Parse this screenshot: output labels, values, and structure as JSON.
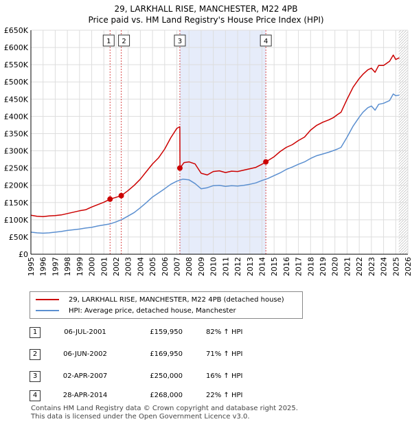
{
  "title": "29, LARKHALL RISE, MANCHESTER, M22 4PB",
  "subtitle": "Price paid vs. HM Land Registry's House Price Index (HPI)",
  "colors": {
    "red": "#cc0000",
    "blue": "#5b8fd0",
    "shade": "#e6ecfa",
    "grid": "#dddddd"
  },
  "chart_data": {
    "type": "line",
    "ylim": [
      0,
      650000
    ],
    "xlim": [
      1995,
      2026
    ],
    "y_ticks": [
      0,
      50000,
      100000,
      150000,
      200000,
      250000,
      300000,
      350000,
      400000,
      450000,
      500000,
      550000,
      600000,
      650000
    ],
    "y_tick_labels": [
      "£0",
      "£50K",
      "£100K",
      "£150K",
      "£200K",
      "£250K",
      "£300K",
      "£350K",
      "£400K",
      "£450K",
      "£500K",
      "£550K",
      "£600K",
      "£650K"
    ],
    "x_ticks": [
      1995,
      1996,
      1997,
      1998,
      1999,
      2000,
      2001,
      2002,
      2003,
      2004,
      2005,
      2006,
      2007,
      2008,
      2009,
      2010,
      2011,
      2012,
      2013,
      2014,
      2015,
      2016,
      2017,
      2018,
      2019,
      2020,
      2021,
      2022,
      2023,
      2024,
      2025,
      2026
    ],
    "x_tick_labels": [
      "1995",
      "1996",
      "1997",
      "1998",
      "1999",
      "2000",
      "2001",
      "2002",
      "2003",
      "2004",
      "2005",
      "2006",
      "2007",
      "2008",
      "2009",
      "2010",
      "2011",
      "2012",
      "2013",
      "2014",
      "2015",
      "2016",
      "2017",
      "2018",
      "2019",
      "2020",
      "2021",
      "2022",
      "2023",
      "2024",
      "2025",
      "2026"
    ],
    "series": [
      {
        "name": "29, LARKHALL RISE, MANCHESTER, M22 4PB (detached house)",
        "color": "#cc0000",
        "points": [
          [
            1995.0,
            113000
          ],
          [
            1995.5,
            110000
          ],
          [
            1996.0,
            109000
          ],
          [
            1996.5,
            111000
          ],
          [
            1997.0,
            112000
          ],
          [
            1997.5,
            114000
          ],
          [
            1998.0,
            118000
          ],
          [
            1998.5,
            122000
          ],
          [
            1999.0,
            126000
          ],
          [
            1999.5,
            129000
          ],
          [
            2000.0,
            137000
          ],
          [
            2000.5,
            144000
          ],
          [
            2001.0,
            151000
          ],
          [
            2001.51,
            159950
          ],
          [
            2002.0,
            165000
          ],
          [
            2002.43,
            169950
          ],
          [
            2003.0,
            185000
          ],
          [
            2003.5,
            200000
          ],
          [
            2004.0,
            218000
          ],
          [
            2004.5,
            240000
          ],
          [
            2005.0,
            262000
          ],
          [
            2005.5,
            280000
          ],
          [
            2006.0,
            305000
          ],
          [
            2006.5,
            338000
          ],
          [
            2007.0,
            365000
          ],
          [
            2007.25,
            370000
          ],
          [
            2007.26,
            250000
          ],
          [
            2007.6,
            266000
          ],
          [
            2008.0,
            268000
          ],
          [
            2008.5,
            262000
          ],
          [
            2009.0,
            235000
          ],
          [
            2009.5,
            230000
          ],
          [
            2010.0,
            240000
          ],
          [
            2010.5,
            242000
          ],
          [
            2011.0,
            237000
          ],
          [
            2011.5,
            241000
          ],
          [
            2012.0,
            240000
          ],
          [
            2012.5,
            244000
          ],
          [
            2013.0,
            248000
          ],
          [
            2013.5,
            252000
          ],
          [
            2014.0,
            261000
          ],
          [
            2014.32,
            268000
          ],
          [
            2015.0,
            283000
          ],
          [
            2015.5,
            298000
          ],
          [
            2016.0,
            310000
          ],
          [
            2016.5,
            318000
          ],
          [
            2017.0,
            330000
          ],
          [
            2017.5,
            340000
          ],
          [
            2018.0,
            360000
          ],
          [
            2018.5,
            374000
          ],
          [
            2019.0,
            383000
          ],
          [
            2019.5,
            390000
          ],
          [
            2019.9,
            397000
          ],
          [
            2020.2,
            405000
          ],
          [
            2020.5,
            412000
          ],
          [
            2021.0,
            450000
          ],
          [
            2021.5,
            485000
          ],
          [
            2022.0,
            510000
          ],
          [
            2022.3,
            522000
          ],
          [
            2022.7,
            535000
          ],
          [
            2023.0,
            540000
          ],
          [
            2023.3,
            528000
          ],
          [
            2023.6,
            548000
          ],
          [
            2024.0,
            548000
          ],
          [
            2024.5,
            560000
          ],
          [
            2024.8,
            578000
          ],
          [
            2025.0,
            565000
          ],
          [
            2025.3,
            570000
          ]
        ]
      },
      {
        "name": "HPI: Average price, detached house, Manchester",
        "color": "#5b8fd0",
        "points": [
          [
            1995.0,
            64000
          ],
          [
            1995.5,
            62000
          ],
          [
            1996.0,
            61000
          ],
          [
            1996.5,
            62000
          ],
          [
            1997.0,
            64000
          ],
          [
            1997.5,
            66000
          ],
          [
            1998.0,
            69000
          ],
          [
            1998.5,
            71000
          ],
          [
            1999.0,
            73000
          ],
          [
            1999.5,
            76000
          ],
          [
            2000.0,
            78000
          ],
          [
            2000.5,
            82000
          ],
          [
            2001.0,
            85000
          ],
          [
            2001.5,
            88000
          ],
          [
            2002.0,
            94000
          ],
          [
            2002.5,
            101000
          ],
          [
            2003.0,
            111000
          ],
          [
            2003.5,
            121000
          ],
          [
            2004.0,
            135000
          ],
          [
            2004.5,
            150000
          ],
          [
            2005.0,
            166000
          ],
          [
            2005.5,
            178000
          ],
          [
            2006.0,
            190000
          ],
          [
            2006.5,
            203000
          ],
          [
            2007.0,
            212000
          ],
          [
            2007.5,
            218000
          ],
          [
            2008.0,
            216000
          ],
          [
            2008.5,
            205000
          ],
          [
            2009.0,
            190000
          ],
          [
            2009.5,
            193000
          ],
          [
            2010.0,
            199000
          ],
          [
            2010.5,
            200000
          ],
          [
            2011.0,
            197000
          ],
          [
            2011.5,
            199000
          ],
          [
            2012.0,
            198000
          ],
          [
            2012.5,
            200000
          ],
          [
            2013.0,
            203000
          ],
          [
            2013.5,
            207000
          ],
          [
            2014.0,
            214000
          ],
          [
            2014.5,
            220000
          ],
          [
            2015.0,
            228000
          ],
          [
            2015.5,
            236000
          ],
          [
            2016.0,
            246000
          ],
          [
            2016.5,
            253000
          ],
          [
            2017.0,
            261000
          ],
          [
            2017.5,
            268000
          ],
          [
            2018.0,
            278000
          ],
          [
            2018.5,
            286000
          ],
          [
            2019.0,
            291000
          ],
          [
            2019.5,
            296000
          ],
          [
            2019.9,
            301000
          ],
          [
            2020.2,
            305000
          ],
          [
            2020.5,
            310000
          ],
          [
            2021.0,
            340000
          ],
          [
            2021.5,
            372000
          ],
          [
            2022.0,
            398000
          ],
          [
            2022.3,
            412000
          ],
          [
            2022.7,
            425000
          ],
          [
            2023.0,
            430000
          ],
          [
            2023.3,
            418000
          ],
          [
            2023.6,
            435000
          ],
          [
            2024.0,
            438000
          ],
          [
            2024.5,
            446000
          ],
          [
            2024.8,
            465000
          ],
          [
            2025.0,
            460000
          ],
          [
            2025.3,
            462000
          ]
        ]
      }
    ],
    "sales": [
      {
        "label": "1",
        "x": 2001.51,
        "price": 159950
      },
      {
        "label": "2",
        "x": 2002.43,
        "price": 169950
      },
      {
        "label": "3",
        "x": 2007.25,
        "price": 250000
      },
      {
        "label": "4",
        "x": 2014.32,
        "price": 268000
      }
    ],
    "shaded_region": [
      2007.25,
      2014.32
    ],
    "future_hatch_from": 2025.25
  },
  "legend": {
    "red_label": "29, LARKHALL RISE, MANCHESTER, M22 4PB (detached house)",
    "blue_label": "HPI: Average price, detached house, Manchester"
  },
  "table": [
    {
      "num": "1",
      "date": "06-JUL-2001",
      "price": "£159,950",
      "hpi": "82% ↑ HPI"
    },
    {
      "num": "2",
      "date": "06-JUN-2002",
      "price": "£169,950",
      "hpi": "71% ↑ HPI"
    },
    {
      "num": "3",
      "date": "02-APR-2007",
      "price": "£250,000",
      "hpi": "16% ↑ HPI"
    },
    {
      "num": "4",
      "date": "28-APR-2014",
      "price": "£268,000",
      "hpi": "22% ↑ HPI"
    }
  ],
  "footer": {
    "line1": "Contains HM Land Registry data © Crown copyright and database right 2025.",
    "line2": "This data is licensed under the Open Government Licence v3.0."
  }
}
